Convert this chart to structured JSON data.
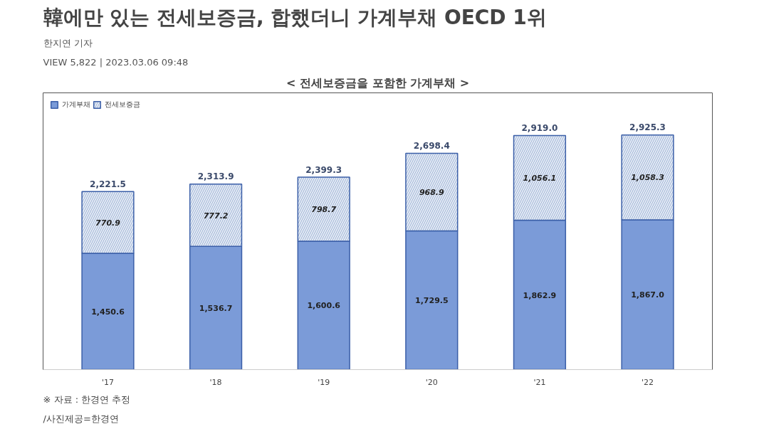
{
  "chart_data": {
    "type": "bar",
    "title": "韓에만 있는 전세보증금, 합했더니 가계부채 OECD 1위",
    "subtitle": "< 전세보증금을 포함한 가계부채 >",
    "categories": [
      "'17",
      "'18",
      "'19",
      "'20",
      "'21",
      "'22"
    ],
    "stacked": true,
    "series": [
      {
        "name": "가계부채",
        "color": "#7b9bd8",
        "values": [
          1450.6,
          1536.7,
          1600.6,
          1729.5,
          1862.9,
          1867.0
        ],
        "value_labels": [
          "1,450.6",
          "1,536.7",
          "1,600.6",
          "1,729.5",
          "1,862.9",
          "1,867.0"
        ]
      },
      {
        "name": "전세보증금",
        "color": "#e4ebf5",
        "values": [
          770.9,
          777.2,
          798.7,
          968.9,
          1056.1,
          1058.3
        ],
        "value_labels": [
          "770.9",
          "777.2",
          "798.7",
          "968.9",
          "1,056.1",
          "1,058.3"
        ]
      }
    ],
    "totals": [
      "2,221.5",
      "2,313.9",
      "2,399.3",
      "2,698.4",
      "2,919.0",
      "2,925.3"
    ],
    "legend": "top left",
    "annotations": [
      "한지연 기자",
      "VIEW 5,822 | 2023.03.06 09:48",
      "※ 자료 : 한경연 추정",
      "/사진제공=한경연"
    ]
  }
}
